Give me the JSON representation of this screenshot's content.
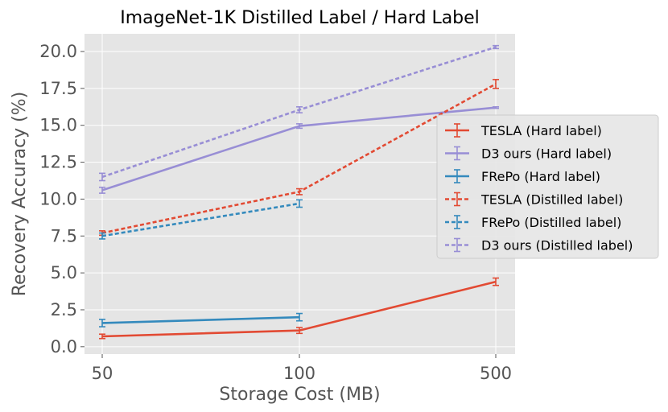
{
  "chart_data": {
    "type": "line",
    "title": "ImageNet-1K Distilled Label / Hard Label",
    "xlabel": "Storage Cost (MB)",
    "ylabel": "Recovery Accuracy (%)",
    "categories": [
      "50",
      "100",
      "500"
    ],
    "ylim": [
      -0.5,
      21.2
    ],
    "yticks": [
      "0.0",
      "2.5",
      "5.0",
      "7.5",
      "10.0",
      "12.5",
      "15.0",
      "17.5",
      "20.0"
    ],
    "ytick_values": [
      0,
      2.5,
      5,
      7.5,
      10,
      12.5,
      15,
      17.5,
      20
    ],
    "grid": true,
    "legend_position": "center-right",
    "series": [
      {
        "name": "TESLA (Hard label)",
        "color": "#E24A33",
        "style": "solid",
        "values": [
          0.7,
          1.1,
          4.4
        ],
        "errors": [
          0.15,
          0.2,
          0.25
        ]
      },
      {
        "name": "D3 ours (Hard label)",
        "color": "#988ED5",
        "style": "solid",
        "values": [
          10.6,
          14.95,
          16.2
        ],
        "errors": [
          0.2,
          0.15,
          0.05
        ]
      },
      {
        "name": "FRePo (Hard label)",
        "color": "#348ABD",
        "style": "solid",
        "values": [
          1.6,
          2.0,
          null
        ],
        "errors": [
          0.25,
          0.25,
          null
        ]
      },
      {
        "name": "TESLA (Distilled label)",
        "color": "#E24A33",
        "style": "dashed",
        "values": [
          7.7,
          10.5,
          17.8
        ],
        "errors": [
          0.15,
          0.2,
          0.3
        ]
      },
      {
        "name": "FRePo (Distilled label)",
        "color": "#348ABD",
        "style": "dashed",
        "values": [
          7.5,
          9.7,
          null
        ],
        "errors": [
          0.2,
          0.25,
          null
        ]
      },
      {
        "name": "D3 ours (Distilled label)",
        "color": "#988ED5",
        "style": "dashed",
        "values": [
          11.5,
          16.05,
          20.3
        ],
        "errors": [
          0.25,
          0.2,
          0.1
        ]
      }
    ]
  }
}
